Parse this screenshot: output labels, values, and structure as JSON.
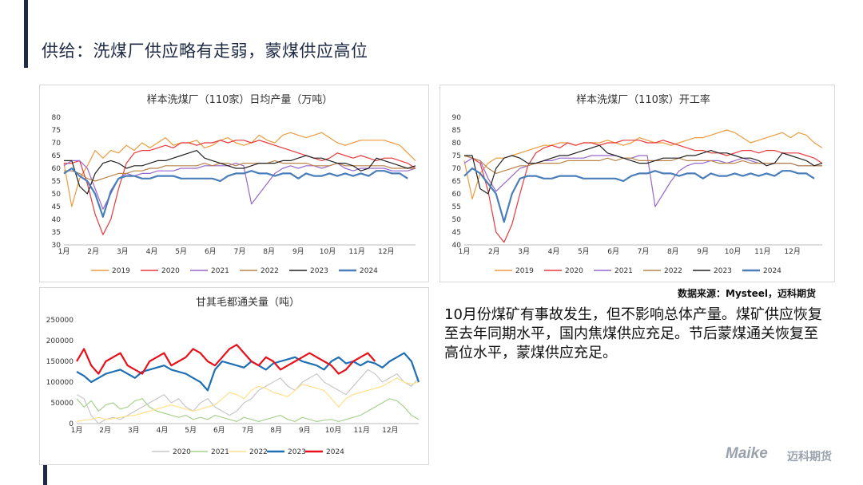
{
  "slide": {
    "title": "供给：洗煤厂供应略有走弱，蒙煤供应高位",
    "source": "数据来源：Mysteel，迈科期货",
    "text": "10月份煤矿有事故发生，但不影响总体产量。煤矿供应恢复至去年同期水平，国内焦煤供应充足。节后蒙煤通关恢复至高位水平，蒙煤供应充足。",
    "logo": "Maike",
    "logo_cn": "迈科期货"
  },
  "colors": {
    "2019": "#ED9B3E",
    "2020": "#E8393C",
    "2021": "#9966CC",
    "2022": "#B8844A",
    "2023": "#222222",
    "2024": "#4A7EBB",
    "gk_2020": "#C8C8C8",
    "gk_2021": "#A9D08E",
    "gk_2022": "#FFE08A",
    "gk_2023": "#1F6FB5",
    "gk_2024": "#E8101A"
  },
  "chart_data": [
    {
      "type": "line",
      "title": "样本洗煤厂（110家）日均产量（万吨）",
      "months": [
        "1月",
        "2月",
        "3月",
        "4月",
        "5月",
        "6月",
        "7月",
        "8月",
        "9月",
        "10月",
        "11月",
        "12月"
      ],
      "ylim": [
        30,
        80
      ],
      "yticks": [
        30,
        35,
        40,
        45,
        50,
        55,
        60,
        65,
        70,
        75,
        80
      ],
      "legend": "bottom",
      "series": [
        {
          "name": "2019",
          "key": "2019",
          "values": [
            62,
            45,
            56,
            61,
            67,
            64,
            67,
            66,
            69,
            67,
            70,
            68,
            70,
            72,
            69,
            70,
            70,
            71,
            68,
            69,
            71,
            72,
            70,
            69,
            70,
            73,
            71,
            70,
            73,
            74,
            73,
            72,
            73,
            74,
            72,
            70,
            69,
            70,
            71,
            71,
            71,
            71,
            70,
            69,
            66,
            63
          ]
        },
        {
          "name": "2020",
          "key": "2020",
          "values": [
            62,
            62,
            63,
            54,
            42,
            34,
            40,
            52,
            62,
            66,
            67,
            67,
            68,
            69,
            68,
            70,
            70,
            69,
            70,
            70,
            71,
            70,
            71,
            71,
            70,
            71,
            70,
            69,
            68,
            67,
            66,
            65,
            64,
            63,
            64,
            66,
            65,
            64,
            65,
            64,
            63,
            64,
            64,
            63,
            62,
            60
          ]
        },
        {
          "name": "2021",
          "key": "2021",
          "values": [
            61,
            63,
            63,
            60,
            52,
            44,
            50,
            56,
            58,
            57,
            58,
            58,
            59,
            59,
            59,
            60,
            60,
            60,
            61,
            61,
            61,
            61,
            62,
            61,
            46,
            50,
            54,
            58,
            60,
            61,
            60,
            61,
            61,
            60,
            61,
            62,
            60,
            59,
            60,
            60,
            60,
            60,
            59,
            59,
            59,
            60
          ]
        },
        {
          "name": "2022",
          "key": "2022",
          "values": [
            59,
            59,
            58,
            56,
            55,
            56,
            57,
            58,
            58,
            59,
            59,
            60,
            60,
            61,
            61,
            61,
            61,
            61,
            62,
            61,
            62,
            62,
            61,
            62,
            62,
            62,
            62,
            63,
            62,
            62,
            62,
            62,
            61,
            61,
            61,
            62,
            61,
            61,
            61,
            61,
            61,
            61,
            60,
            60,
            60,
            60
          ]
        },
        {
          "name": "2023",
          "key": "2023",
          "values": [
            63,
            63,
            53,
            50,
            58,
            62,
            63,
            62,
            60,
            61,
            61,
            62,
            63,
            63,
            64,
            65,
            66,
            67,
            64,
            63,
            62,
            61,
            60,
            60,
            61,
            62,
            62,
            62,
            63,
            63,
            64,
            65,
            64,
            64,
            63,
            62,
            62,
            61,
            59,
            60,
            64,
            63,
            62,
            61,
            60,
            61
          ]
        },
        {
          "name": "2024",
          "key": "2024",
          "values": [
            58,
            60,
            57,
            55,
            50,
            41,
            51,
            56,
            57,
            57,
            56,
            56,
            57,
            57,
            57,
            56,
            56,
            56,
            56,
            56,
            55,
            57,
            58,
            58,
            59,
            58,
            58,
            57,
            58,
            58,
            56,
            58,
            57,
            57,
            58,
            57,
            58,
            57,
            58,
            57,
            59,
            59,
            58,
            58,
            56
          ]
        }
      ]
    },
    {
      "type": "line",
      "title": "样本洗煤厂（110家）开工率",
      "months": [
        "1月",
        "2月",
        "3月",
        "4月",
        "5月",
        "6月",
        "7月",
        "8月",
        "9月",
        "10月",
        "11月",
        "12月"
      ],
      "ylim": [
        40,
        90
      ],
      "yticks": [
        40,
        45,
        50,
        55,
        60,
        65,
        70,
        75,
        80,
        85,
        90
      ],
      "legend": "bottom",
      "series": [
        {
          "name": "2019",
          "key": "2019",
          "values": [
            73,
            58,
            68,
            72,
            74,
            74,
            75,
            76,
            77,
            78,
            79,
            79,
            80,
            80,
            79,
            80,
            80,
            80,
            81,
            80,
            79,
            80,
            82,
            81,
            80,
            80,
            79,
            80,
            81,
            82,
            82,
            83,
            84,
            85,
            84,
            82,
            80,
            81,
            82,
            83,
            84,
            82,
            84,
            83,
            80,
            78
          ]
        },
        {
          "name": "2020",
          "key": "2020",
          "values": [
            75,
            74,
            72,
            61,
            45,
            41,
            48,
            60,
            71,
            76,
            78,
            79,
            78,
            80,
            79,
            80,
            80,
            79,
            80,
            80,
            81,
            81,
            81,
            80,
            80,
            81,
            80,
            79,
            78,
            77,
            77,
            76,
            76,
            75,
            76,
            77,
            77,
            76,
            77,
            77,
            76,
            76,
            76,
            75,
            74,
            72
          ]
        },
        {
          "name": "2021",
          "key": "2021",
          "values": [
            72,
            74,
            73,
            66,
            61,
            64,
            67,
            70,
            71,
            72,
            73,
            73,
            74,
            74,
            74,
            74,
            75,
            75,
            75,
            75,
            74,
            74,
            75,
            75,
            55,
            60,
            65,
            69,
            71,
            72,
            72,
            73,
            73,
            72,
            73,
            74,
            73,
            72,
            72,
            72,
            72,
            72,
            71,
            71,
            71,
            71
          ]
        },
        {
          "name": "2022",
          "key": "2022",
          "values": [
            75,
            74,
            73,
            70,
            68,
            69,
            70,
            71,
            71,
            72,
            72,
            72,
            72,
            73,
            73,
            73,
            73,
            73,
            74,
            73,
            74,
            74,
            73,
            73,
            73,
            73,
            73,
            74,
            73,
            73,
            73,
            73,
            72,
            72,
            72,
            73,
            72,
            72,
            72,
            72,
            72,
            72,
            71,
            71,
            71,
            71
          ]
        },
        {
          "name": "2023",
          "key": "2023",
          "values": [
            75,
            75,
            62,
            60,
            70,
            74,
            75,
            74,
            72,
            72,
            73,
            74,
            75,
            75,
            76,
            77,
            78,
            79,
            76,
            75,
            74,
            73,
            72,
            72,
            73,
            74,
            74,
            74,
            75,
            75,
            76,
            77,
            76,
            76,
            75,
            74,
            74,
            73,
            71,
            72,
            76,
            75,
            74,
            73,
            71,
            72
          ]
        },
        {
          "name": "2024",
          "key": "2024",
          "values": [
            67,
            70,
            68,
            64,
            60,
            49,
            60,
            66,
            67,
            67,
            66,
            66,
            67,
            67,
            67,
            66,
            66,
            66,
            66,
            66,
            65,
            67,
            68,
            68,
            69,
            68,
            68,
            67,
            68,
            68,
            66,
            68,
            67,
            67,
            68,
            67,
            68,
            67,
            68,
            67,
            69,
            69,
            68,
            68,
            66
          ]
        }
      ]
    },
    {
      "type": "line",
      "title": "甘其毛都通关量（吨）",
      "months": [
        "1月",
        "2月",
        "3月",
        "4月",
        "5月",
        "6月",
        "7月",
        "8月",
        "9月",
        "10月",
        "11月",
        "12月"
      ],
      "ylim": [
        0,
        250000
      ],
      "yticks": [
        0,
        50000,
        100000,
        150000,
        200000,
        250000
      ],
      "legend": "bottom",
      "series": [
        {
          "name": "2020",
          "key": "gk_2020",
          "values": [
            70000,
            60000,
            20000,
            0,
            10000,
            15000,
            10000,
            20000,
            30000,
            40000,
            50000,
            60000,
            70000,
            50000,
            60000,
            40000,
            30000,
            50000,
            60000,
            40000,
            30000,
            20000,
            30000,
            50000,
            60000,
            80000,
            90000,
            100000,
            110000,
            90000,
            80000,
            100000,
            110000,
            120000,
            100000,
            90000,
            80000,
            70000,
            90000,
            110000,
            130000,
            120000,
            100000,
            110000,
            120000,
            100000,
            90000,
            110000
          ]
        },
        {
          "name": "2021",
          "key": "gk_2021",
          "values": [
            60000,
            40000,
            55000,
            30000,
            45000,
            50000,
            35000,
            40000,
            55000,
            60000,
            40000,
            30000,
            25000,
            20000,
            15000,
            20000,
            10000,
            15000,
            10000,
            20000,
            15000,
            10000,
            5000,
            15000,
            10000,
            5000,
            10000,
            15000,
            20000,
            10000,
            5000,
            15000,
            10000,
            5000,
            8000,
            10000,
            5000,
            10000,
            15000,
            20000,
            30000,
            40000,
            50000,
            60000,
            55000,
            40000,
            20000,
            10000
          ]
        },
        {
          "name": "2022",
          "key": "gk_2022",
          "values": [
            5000,
            8000,
            10000,
            15000,
            10000,
            12000,
            15000,
            18000,
            20000,
            25000,
            30000,
            35000,
            40000,
            45000,
            40000,
            35000,
            30000,
            35000,
            40000,
            45000,
            60000,
            75000,
            70000,
            60000,
            80000,
            90000,
            85000,
            75000,
            70000,
            65000,
            80000,
            95000,
            90000,
            85000,
            80000,
            60000,
            40000,
            60000,
            70000,
            75000,
            80000,
            85000,
            90000,
            100000,
            110000,
            100000,
            95000,
            100000
          ]
        },
        {
          "name": "2023",
          "key": "gk_2023",
          "values": [
            125000,
            115000,
            100000,
            110000,
            120000,
            125000,
            130000,
            120000,
            110000,
            125000,
            130000,
            135000,
            140000,
            130000,
            125000,
            120000,
            110000,
            100000,
            80000,
            130000,
            150000,
            145000,
            140000,
            135000,
            150000,
            140000,
            130000,
            145000,
            150000,
            155000,
            160000,
            150000,
            145000,
            140000,
            130000,
            150000,
            160000,
            145000,
            150000,
            140000,
            150000,
            145000,
            135000,
            150000,
            160000,
            170000,
            150000,
            100000
          ]
        },
        {
          "name": "2024",
          "key": "gk_2024",
          "values": [
            150000,
            180000,
            140000,
            120000,
            150000,
            160000,
            170000,
            140000,
            130000,
            120000,
            150000,
            160000,
            170000,
            140000,
            150000,
            160000,
            180000,
            170000,
            150000,
            140000,
            160000,
            180000,
            190000,
            170000,
            150000,
            140000,
            160000,
            150000,
            130000,
            140000,
            150000,
            160000,
            170000,
            160000,
            150000,
            140000,
            120000,
            130000,
            150000,
            160000,
            170000,
            150000
          ]
        }
      ]
    }
  ]
}
